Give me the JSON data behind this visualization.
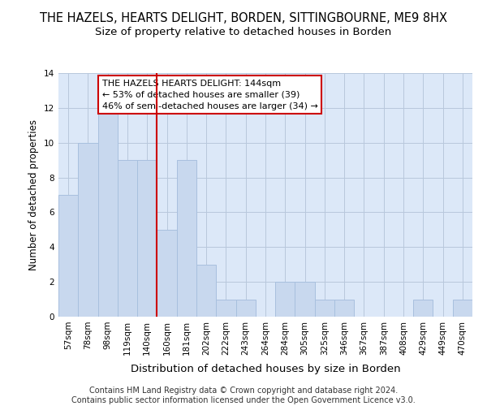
{
  "title": "THE HAZELS, HEARTS DELIGHT, BORDEN, SITTINGBOURNE, ME9 8HX",
  "subtitle": "Size of property relative to detached houses in Borden",
  "xlabel": "Distribution of detached houses by size in Borden",
  "ylabel": "Number of detached properties",
  "categories": [
    "57sqm",
    "78sqm",
    "98sqm",
    "119sqm",
    "140sqm",
    "160sqm",
    "181sqm",
    "202sqm",
    "222sqm",
    "243sqm",
    "264sqm",
    "284sqm",
    "305sqm",
    "325sqm",
    "346sqm",
    "367sqm",
    "387sqm",
    "408sqm",
    "429sqm",
    "449sqm",
    "470sqm"
  ],
  "values": [
    7,
    10,
    12,
    9,
    9,
    5,
    9,
    3,
    1,
    1,
    0,
    2,
    2,
    1,
    1,
    0,
    0,
    0,
    1,
    0,
    1
  ],
  "bar_color": "#c8d8ee",
  "bar_edge_color": "#a8c0de",
  "vline_x": 4.5,
  "vline_color": "#cc0000",
  "ylim": [
    0,
    14
  ],
  "yticks": [
    0,
    2,
    4,
    6,
    8,
    10,
    12,
    14
  ],
  "annotation_title": "THE HAZELS HEARTS DELIGHT: 144sqm",
  "annotation_line2": "← 53% of detached houses are smaller (39)",
  "annotation_line3": "46% of semi-detached houses are larger (34) →",
  "annotation_box_color": "#ffffff",
  "annotation_box_edge": "#cc0000",
  "footer_line1": "Contains HM Land Registry data © Crown copyright and database right 2024.",
  "footer_line2": "Contains public sector information licensed under the Open Government Licence v3.0.",
  "plot_bg_color": "#dce8f8",
  "grid_color": "#b8c8dc",
  "title_fontsize": 10.5,
  "subtitle_fontsize": 9.5,
  "ylabel_fontsize": 8.5,
  "xlabel_fontsize": 9.5,
  "tick_fontsize": 7.5,
  "ann_fontsize": 8,
  "footer_fontsize": 7
}
